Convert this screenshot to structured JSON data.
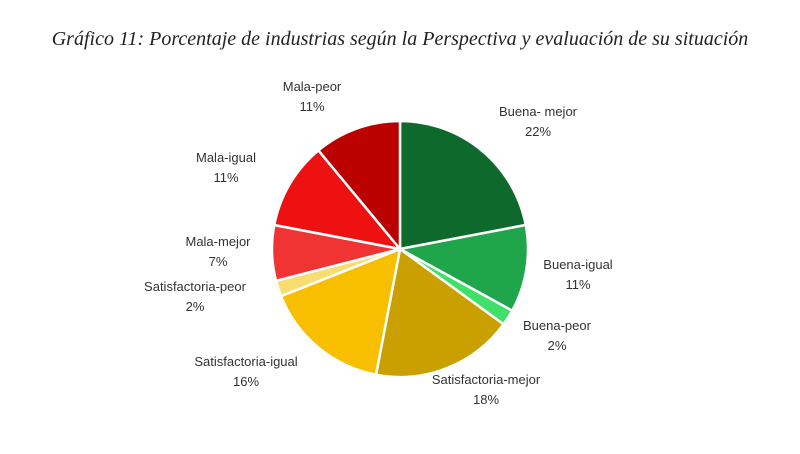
{
  "chart_data": {
    "type": "pie",
    "title": "Gráfico 11: Porcentaje de industrias según la Perspectiva y evaluación de su situación",
    "unit": "%",
    "start": "12 o'clock",
    "direction": "clockwise",
    "slices": [
      {
        "label": "Buena- mejor",
        "value": 22,
        "value_label": "22%",
        "color": "#0e6a2c"
      },
      {
        "label": "Buena-igual",
        "value": 11,
        "value_label": "11%",
        "color": "#1fa64a"
      },
      {
        "label": "Buena-peor",
        "value": 2,
        "value_label": "2%",
        "color": "#3fe06a"
      },
      {
        "label": "Satisfactoria-mejor",
        "value": 18,
        "value_label": "18%",
        "color": "#c9a000"
      },
      {
        "label": "Satisfactoria-igual",
        "value": 16,
        "value_label": "16%",
        "color": "#f7bf00"
      },
      {
        "label": "Satisfactoria-peor",
        "value": 2,
        "value_label": "2%",
        "color": "#f8dd70"
      },
      {
        "label": "Mala-mejor",
        "value": 7,
        "value_label": "7%",
        "color": "#f03333"
      },
      {
        "label": "Mala-igual",
        "value": 11,
        "value_label": "11%",
        "color": "#ee1111"
      },
      {
        "label": "Mala-peor",
        "value": 11,
        "value_label": "11%",
        "color": "#bb0000"
      }
    ]
  }
}
